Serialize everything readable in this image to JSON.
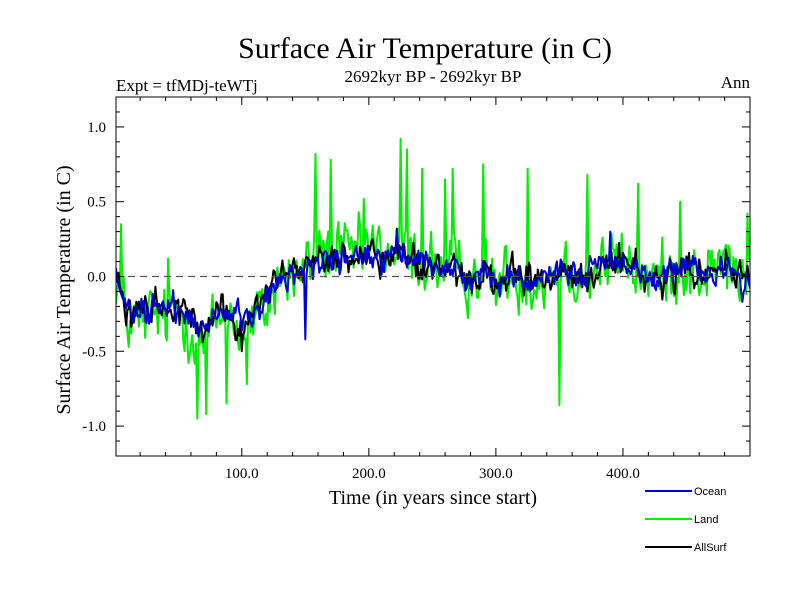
{
  "chart_data": {
    "type": "line",
    "title": "Surface Air Temperature (in C)",
    "subtitle_left": "Expt = tfMDj-teWTj",
    "subtitle_center": "2692kyr BP - 2692kyr BP",
    "subtitle_right": "Ann",
    "xlabel": "Time (in years since start)",
    "ylabel": "Surface Air Temperature (in C)",
    "xlim": [
      1,
      500
    ],
    "ylim": [
      -1.2,
      1.2
    ],
    "xticks": [
      100,
      200,
      300,
      400
    ],
    "xtick_labels": [
      "100.0",
      "200.0",
      "300.0",
      "400.0"
    ],
    "yticks": [
      -1.0,
      -0.5,
      0.0,
      0.5,
      1.0
    ],
    "ytick_labels": [
      "-1.0",
      "-0.5",
      "0.0",
      "0.5",
      "1.0"
    ],
    "reference_line": 0.0,
    "series": [
      {
        "name": "Land",
        "color": "#00ee00",
        "base_x": [
          1,
          10,
          20,
          30,
          40,
          50,
          60,
          70,
          80,
          90,
          100,
          110,
          120,
          130,
          140,
          150,
          160,
          170,
          180,
          190,
          200,
          210,
          220,
          230,
          240,
          250,
          260,
          270,
          280,
          290,
          300,
          310,
          320,
          330,
          340,
          350,
          360,
          370,
          380,
          390,
          400,
          410,
          420,
          430,
          440,
          450,
          460,
          470,
          480,
          490,
          500
        ],
        "base_y": [
          0.0,
          -0.3,
          -0.3,
          -0.25,
          -0.3,
          -0.2,
          -0.35,
          -0.45,
          -0.3,
          -0.25,
          -0.35,
          -0.3,
          -0.2,
          0.0,
          0.0,
          0.05,
          0.2,
          0.15,
          0.15,
          0.15,
          0.2,
          0.15,
          0.15,
          0.15,
          0.1,
          0.1,
          0.05,
          0.05,
          0.0,
          0.05,
          -0.05,
          0.0,
          0.0,
          -0.05,
          0.0,
          0.05,
          0.05,
          0.0,
          0.05,
          0.1,
          0.1,
          0.05,
          0.0,
          0.0,
          0.05,
          0.05,
          0.0,
          0.05,
          0.1,
          0.0,
          0.0
        ],
        "amplitude": 0.22,
        "peaks": [
          [
            5,
            0.35
          ],
          [
            42,
            0.12
          ],
          [
            65,
            -0.95
          ],
          [
            72,
            -0.92
          ],
          [
            88,
            -0.85
          ],
          [
            104,
            -0.72
          ],
          [
            158,
            0.82
          ],
          [
            170,
            0.78
          ],
          [
            196,
            0.52
          ],
          [
            225,
            0.92
          ],
          [
            230,
            0.85
          ],
          [
            242,
            0.72
          ],
          [
            260,
            0.65
          ],
          [
            266,
            0.72
          ],
          [
            290,
            0.75
          ],
          [
            325,
            0.72
          ],
          [
            350,
            -0.86
          ],
          [
            372,
            0.68
          ],
          [
            412,
            0.62
          ],
          [
            445,
            0.5
          ],
          [
            498,
            0.42
          ]
        ]
      },
      {
        "name": "Ocean",
        "color": "#0000dd",
        "base_x": [
          1,
          10,
          20,
          30,
          40,
          50,
          60,
          70,
          80,
          90,
          100,
          110,
          120,
          130,
          140,
          150,
          160,
          170,
          180,
          190,
          200,
          210,
          220,
          230,
          240,
          250,
          260,
          270,
          280,
          290,
          300,
          310,
          320,
          330,
          340,
          350,
          360,
          370,
          380,
          390,
          400,
          410,
          420,
          430,
          440,
          450,
          460,
          470,
          480,
          490,
          500
        ],
        "base_y": [
          0.0,
          -0.25,
          -0.25,
          -0.2,
          -0.25,
          -0.18,
          -0.28,
          -0.35,
          -0.25,
          -0.2,
          -0.3,
          -0.25,
          -0.15,
          0.0,
          0.0,
          0.05,
          0.12,
          0.1,
          0.12,
          0.12,
          0.15,
          0.12,
          0.12,
          0.12,
          0.08,
          0.08,
          0.05,
          0.05,
          0.0,
          0.03,
          -0.05,
          0.0,
          0.0,
          -0.03,
          0.0,
          0.03,
          0.05,
          0.0,
          0.05,
          0.08,
          0.08,
          0.05,
          0.0,
          0.0,
          0.03,
          0.05,
          0.0,
          0.05,
          0.05,
          0.0,
          -0.05
        ],
        "amplitude": 0.1,
        "peaks": [
          [
            150,
            -0.42
          ],
          [
            222,
            0.3
          ],
          [
            390,
            0.3
          ]
        ]
      },
      {
        "name": "AllSurf",
        "color": "#000000",
        "base_x": [
          1,
          10,
          20,
          30,
          40,
          50,
          60,
          70,
          80,
          90,
          100,
          110,
          120,
          130,
          140,
          150,
          160,
          170,
          180,
          190,
          200,
          210,
          220,
          230,
          240,
          250,
          260,
          270,
          280,
          290,
          300,
          310,
          320,
          330,
          340,
          350,
          360,
          370,
          380,
          390,
          400,
          410,
          420,
          430,
          440,
          450,
          460,
          470,
          480,
          490,
          500
        ],
        "base_y": [
          0.0,
          -0.26,
          -0.26,
          -0.21,
          -0.26,
          -0.18,
          -0.3,
          -0.38,
          -0.26,
          -0.21,
          -0.32,
          -0.26,
          -0.16,
          0.0,
          0.0,
          0.05,
          0.14,
          0.11,
          0.13,
          0.13,
          0.16,
          0.13,
          0.13,
          0.13,
          0.09,
          0.09,
          0.05,
          0.05,
          0.0,
          0.04,
          -0.05,
          0.0,
          0.0,
          -0.04,
          0.0,
          0.04,
          0.05,
          0.0,
          0.05,
          0.09,
          0.09,
          0.05,
          0.0,
          0.0,
          0.04,
          0.05,
          0.0,
          0.05,
          0.06,
          0.0,
          -0.03
        ],
        "amplitude": 0.12,
        "peaks": [
          [
            100,
            -0.5
          ],
          [
            222,
            0.32
          ]
        ]
      }
    ],
    "legend": {
      "placement": "bottom-right",
      "entries": [
        {
          "name": "Ocean",
          "color": "#0000dd"
        },
        {
          "name": "Land",
          "color": "#00ee00"
        },
        {
          "name": "AllSurf",
          "color": "#000000"
        }
      ]
    }
  }
}
